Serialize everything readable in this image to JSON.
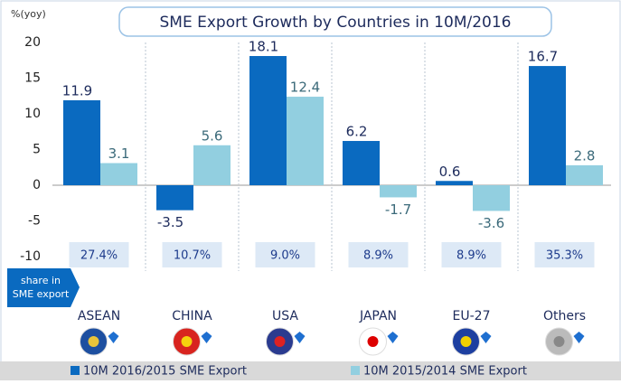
{
  "chart_data": {
    "type": "bar",
    "title": "SME Export Growth by Countries in 10M/2016",
    "y_label": "%(yoy)",
    "categories": [
      "ASEAN",
      "CHINA",
      "USA",
      "JAPAN",
      "EU-27",
      "Others"
    ],
    "series": [
      {
        "name": "10M 2016/2015 SME Export",
        "color": "#0a6ac0",
        "values": [
          11.9,
          -3.5,
          18.1,
          6.2,
          0.6,
          16.7
        ]
      },
      {
        "name": "10M 2015/2014 SME Export",
        "color": "#92cfe0",
        "values": [
          3.1,
          5.6,
          12.4,
          -1.7,
          -3.6,
          2.8
        ]
      }
    ],
    "ylim": [
      -10,
      20
    ],
    "yticks": [
      20,
      15,
      10,
      5,
      0,
      -5,
      -10
    ],
    "share": {
      "label": [
        "share in",
        "SME export"
      ],
      "values": [
        27.4,
        10.7,
        9.0,
        8.9,
        8.9,
        35.3
      ],
      "value_labels": [
        "27.4%",
        "10.7%",
        "9.0%",
        "8.9%",
        "8.9%",
        "35.3%"
      ]
    },
    "legend": "bottom"
  }
}
